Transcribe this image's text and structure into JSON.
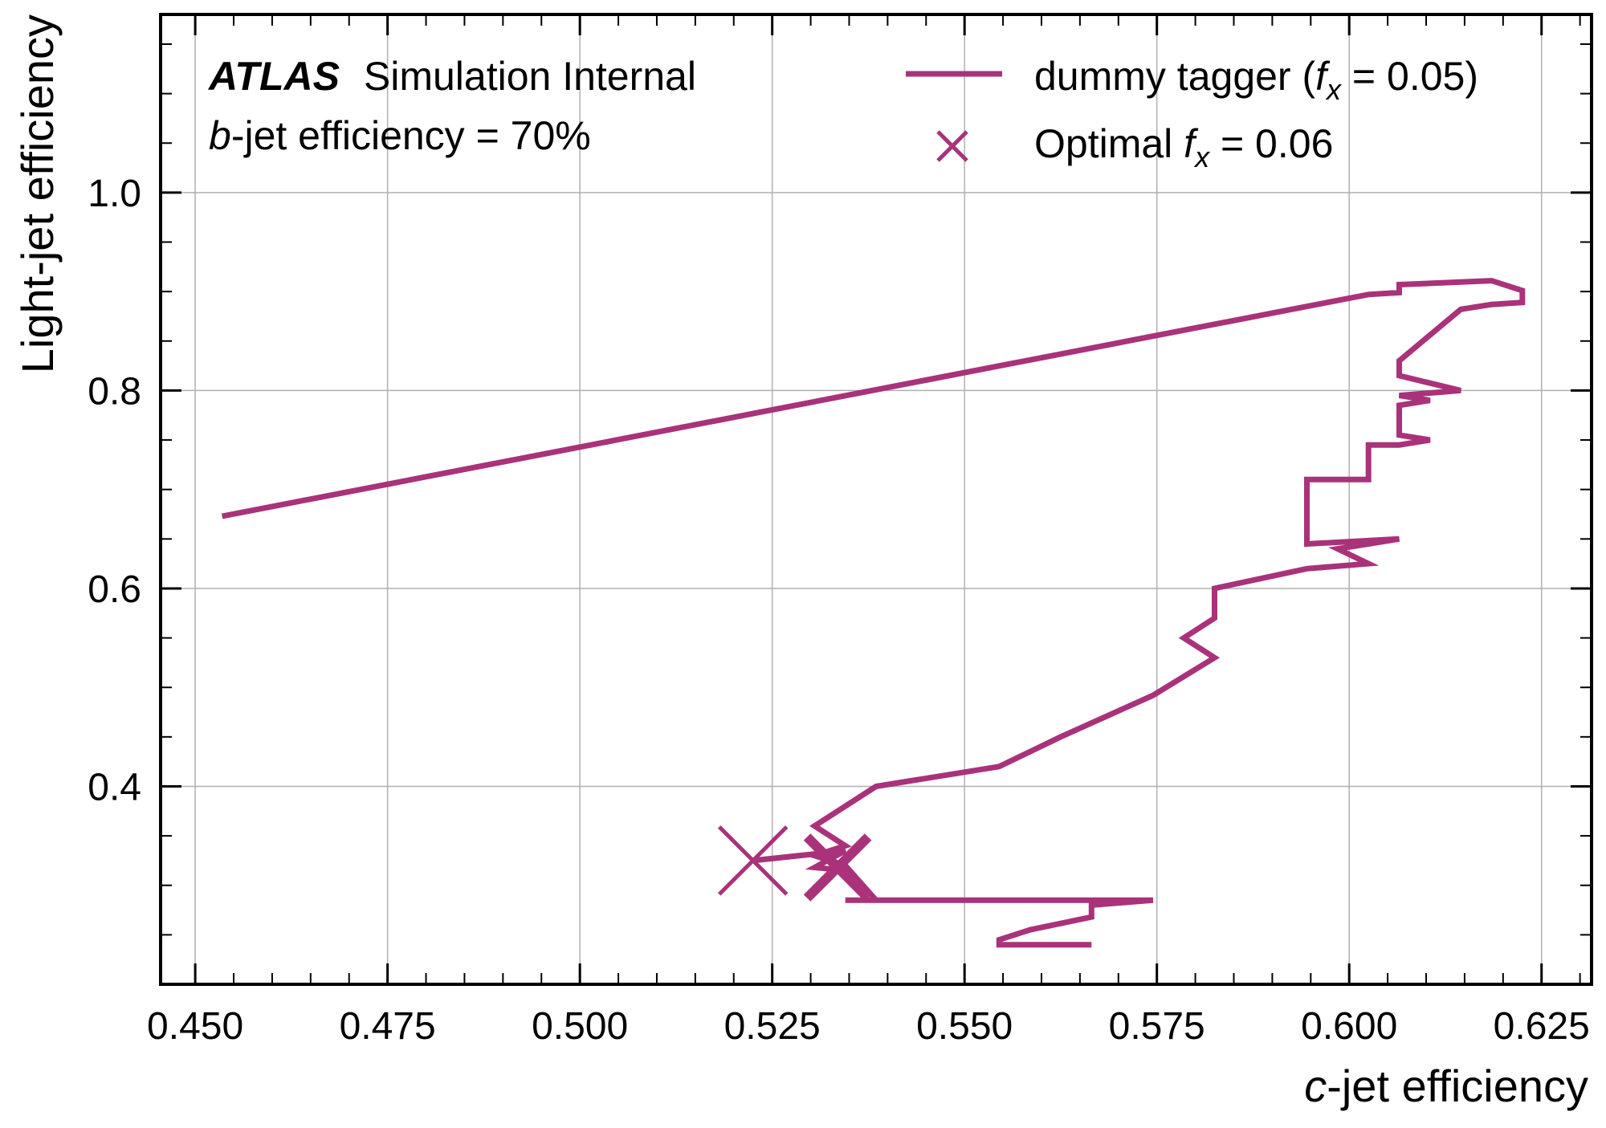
{
  "colors": {
    "series": "#a9327a",
    "grid": "#b0b0b0",
    "axis": "#000000"
  },
  "header": {
    "experiment": "ATLAS",
    "status": "Simulation Internal",
    "line2_italic": "b",
    "line2_rest": "-jet efficiency = 70%"
  },
  "chart_data": {
    "type": "line",
    "xlabel_italic": "c",
    "xlabel_rest": "-jet efficiency",
    "ylabel": "Light-jet efficiency",
    "xlim": [
      0.4455,
      0.6315
    ],
    "ylim": [
      0.2,
      1.18
    ],
    "xticks": [
      0.45,
      0.475,
      0.5,
      0.525,
      0.55,
      0.575,
      0.6,
      0.625
    ],
    "xtick_labels": [
      "0.450",
      "0.475",
      "0.500",
      "0.525",
      "0.550",
      "0.575",
      "0.600",
      "0.625"
    ],
    "yticks": [
      0.4,
      0.6,
      0.8,
      1.0
    ],
    "ytick_labels": [
      "0.4",
      "0.6",
      "0.8",
      "1.0"
    ],
    "grid": true,
    "legend_position": "top-right",
    "series": [
      {
        "name": "dummy tagger (f_x = 0.05)",
        "legend_prefix": "dummy tagger (",
        "legend_math": "f",
        "legend_sub": "x",
        "legend_suffix": " = 0.05)",
        "x": [
          0.4535,
          0.6025,
          0.6065,
          0.6065,
          0.6185,
          0.6225,
          0.6225,
          0.6185,
          0.6145,
          0.6065,
          0.6065,
          0.6145,
          0.6065,
          0.6105,
          0.6065,
          0.6065,
          0.6105,
          0.6065,
          0.6025,
          0.6025,
          0.5945,
          0.5945,
          0.6065,
          0.6025,
          0.5985,
          0.6025,
          0.5945,
          0.5825,
          0.5825,
          0.5825,
          0.5785,
          0.5825,
          0.5745,
          0.5625,
          0.5545,
          0.5385,
          0.5305,
          0.5345,
          0.5305,
          0.5345,
          0.5385,
          0.5345,
          0.5345,
          0.5745,
          0.5665,
          0.5665,
          0.5585,
          0.5545,
          0.5545,
          0.5665
        ],
        "y": [
          0.673,
          0.897,
          0.899,
          0.907,
          0.911,
          0.901,
          0.889,
          0.887,
          0.882,
          0.83,
          0.815,
          0.8,
          0.795,
          0.79,
          0.785,
          0.755,
          0.75,
          0.745,
          0.745,
          0.71,
          0.71,
          0.645,
          0.65,
          0.645,
          0.64,
          0.625,
          0.62,
          0.6,
          0.59,
          0.57,
          0.55,
          0.53,
          0.492,
          0.45,
          0.42,
          0.4,
          0.36,
          0.34,
          0.33,
          0.32,
          0.285,
          0.285,
          0.285,
          0.285,
          0.28,
          0.268,
          0.255,
          0.245,
          0.24,
          0.24
        ]
      },
      {
        "name": "Optimal f_x = 0.06",
        "legend_prefix": "Optimal ",
        "legend_math": "f",
        "legend_sub": "x",
        "legend_suffix": " = 0.06",
        "x": [
          0.5225,
          0.5345,
          0.5305,
          0.5345,
          0.5305
        ],
        "y": [
          0.325,
          0.335,
          0.318,
          0.315,
          0.34
        ]
      }
    ],
    "optimal_marker": {
      "x": 0.5225,
      "y": 0.325
    },
    "small_markers": [
      {
        "x": 0.5335,
        "y": 0.318
      }
    ]
  }
}
